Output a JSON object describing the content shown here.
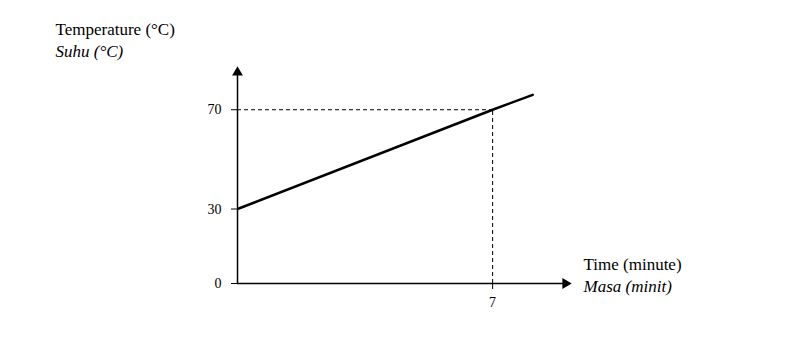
{
  "chart_data": {
    "type": "line",
    "y_label": "Temperature (°C)",
    "y_label_2": "Suhu (°C)",
    "x_label": "Time (minute)",
    "x_label_2": "Masa (minit)",
    "x": [
      0,
      7,
      8.1
    ],
    "values": [
      30,
      70,
      76
    ],
    "color": "#000000",
    "xlim": [
      0,
      9
    ],
    "xticks": [
      7
    ],
    "ylim": [
      0,
      85
    ],
    "yticks": [
      0,
      30,
      70
    ],
    "dashed_guides": [
      {
        "x": 7,
        "y": 70
      }
    ],
    "grid": false
  }
}
